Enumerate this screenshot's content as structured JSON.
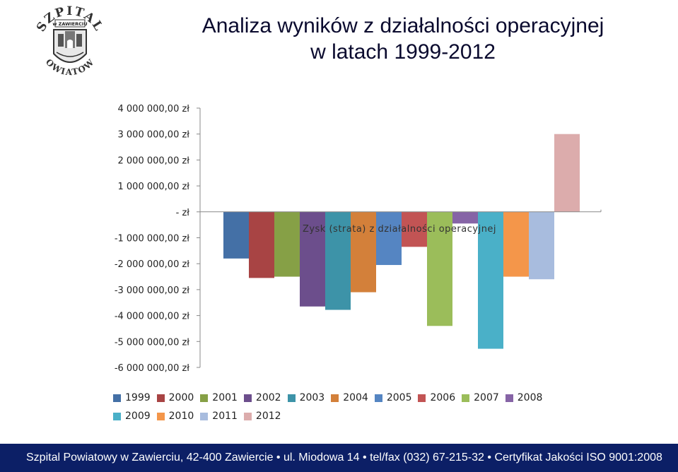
{
  "header": {
    "title_line1": "Analiza wyników z działalności operacyjnej",
    "title_line2": "w latach 1999-2012"
  },
  "logo": {
    "text_top": "SZPITAL",
    "text_middle": "w ZAWIERCIU",
    "text_bottom": "POWIATOWY"
  },
  "footer": {
    "text": "Szpital Powiatowy w Zawierciu, 42-400 Zawiercie • ul. Miodowa 14 • tel/fax (032) 67-215-32 • Certyfikat Jakości ISO 9001:2008"
  },
  "chart_data": {
    "type": "bar",
    "title": "",
    "series_label": "Zysk (strata) z działalności operacyjnej",
    "categories": [
      "1999",
      "2000",
      "2001",
      "2002",
      "2003",
      "2004",
      "2005",
      "2006",
      "2007",
      "2008",
      "2009",
      "2010",
      "2011",
      "2012"
    ],
    "values": [
      -1800000,
      -2550000,
      -2500000,
      -3650000,
      -3780000,
      -3100000,
      -2050000,
      -1350000,
      -4400000,
      -450000,
      -5280000,
      -2500000,
      -2600000,
      3000000
    ],
    "colors": [
      "#4470a6",
      "#a84444",
      "#86a046",
      "#6c4e8c",
      "#3d93a8",
      "#d3803a",
      "#5585c2",
      "#c25454",
      "#9bbd5a",
      "#8664a6",
      "#4ab0c8",
      "#f4964a",
      "#a8bcde",
      "#dcacac"
    ],
    "ylim": [
      -6000000,
      4000000
    ],
    "yticks": [
      4000000,
      3000000,
      2000000,
      1000000,
      0,
      -1000000,
      -2000000,
      -3000000,
      -4000000,
      -5000000,
      -6000000
    ],
    "ytick_labels": [
      "4 000 000,00 zł",
      "3 000 000,00 zł",
      "2 000 000,00 zł",
      "1 000 000,00 zł",
      "-   zł",
      "-1 000 000,00 zł",
      "-2 000 000,00 zł",
      "-3 000 000,00 zł",
      "-4 000 000,00 zł",
      "-5 000 000,00 zł",
      "-6 000 000,00 zł"
    ],
    "grid": false,
    "legend_position": "bottom",
    "legend": [
      "1999",
      "2000",
      "2001",
      "2002",
      "2003",
      "2004",
      "2005",
      "2006",
      "2007",
      "2008",
      "2009",
      "2010",
      "2011",
      "2012"
    ]
  }
}
